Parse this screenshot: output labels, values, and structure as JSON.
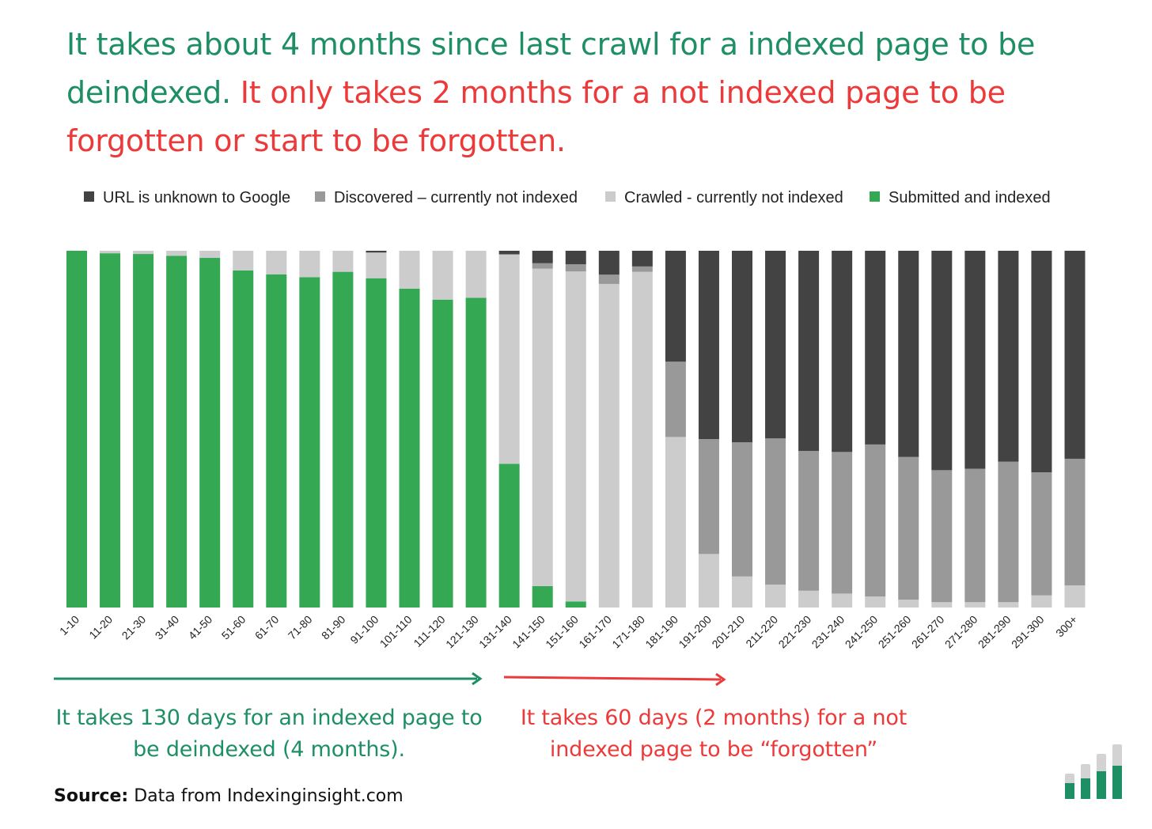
{
  "headline": {
    "green_part": "It takes about 4 months since last crawl for a indexed page to be deindexed.",
    "red_part": "It only takes 2 months for a not indexed page to be forgotten or start to be forgotten."
  },
  "captions": {
    "left": "It takes 130 days for an indexed page to be deindexed (4 months).",
    "right": "It takes 60 days (2 months) for a not indexed page to be “forgotten”"
  },
  "source": {
    "label": "Source:",
    "text": "Data from Indexinginsight.com"
  },
  "colors": {
    "green_text": "#1e8f64",
    "red_text": "#ec3a3a",
    "unknown": "#434343",
    "discovered": "#999999",
    "crawled": "#cccccc",
    "indexed": "#34a853"
  },
  "chart_data": {
    "type": "bar",
    "stacked": true,
    "normalized": true,
    "title": "",
    "xlabel": "",
    "ylabel": "",
    "ylim": [
      0,
      100
    ],
    "legend_position": "top",
    "categories": [
      "1-10",
      "11-20",
      "21-30",
      "31-40",
      "41-50",
      "51-60",
      "61-70",
      "71-80",
      "81-90",
      "91-100",
      "101-110",
      "111-120",
      "121-130",
      "131-140",
      "141-150",
      "151-160",
      "161-170",
      "171-180",
      "181-190",
      "191-200",
      "201-210",
      "211-220",
      "221-230",
      "231-240",
      "241-250",
      "251-260",
      "261-270",
      "271-280",
      "281-290",
      "291-300",
      "300+"
    ],
    "series": [
      {
        "name": "Submitted and indexed",
        "color": "#34a853",
        "values": [
          100,
          99.3,
          99.1,
          98.6,
          98,
          94.5,
          93.4,
          92.6,
          94.1,
          92.3,
          89.4,
          86.3,
          86.8,
          40.3,
          6,
          1.7,
          0,
          0,
          0,
          0,
          0,
          0,
          0,
          0,
          0,
          0,
          0,
          0,
          0,
          0,
          0
        ]
      },
      {
        "name": "Crawled - currently not indexed",
        "color": "#cccccc",
        "values": [
          0,
          0.7,
          0.9,
          1.4,
          2,
          5.5,
          6.6,
          7.4,
          5.9,
          7.2,
          10.6,
          13.7,
          13.2,
          58.7,
          89,
          92.5,
          90.7,
          94.1,
          47.8,
          15,
          8.7,
          6.4,
          4.7,
          3.9,
          3.1,
          2.2,
          1.5,
          1.5,
          1.5,
          3.4,
          6.2
        ]
      },
      {
        "name": "Discovered – currently not indexed",
        "color": "#999999",
        "values": [
          0,
          0,
          0,
          0,
          0,
          0,
          0,
          0,
          0,
          0,
          0,
          0,
          0,
          0,
          1.5,
          2,
          2.6,
          1.5,
          21.1,
          32.2,
          37.6,
          41,
          39.2,
          39.7,
          42.6,
          40,
          37,
          37.4,
          39.4,
          34.5,
          35.5
        ]
      },
      {
        "name": "URL is unknown to Google",
        "color": "#434343",
        "values": [
          0,
          0,
          0,
          0,
          0,
          0,
          0,
          0,
          0,
          0.5,
          0,
          0,
          0,
          1,
          3.5,
          3.8,
          6.7,
          4.4,
          31.1,
          52.8,
          53.7,
          52.6,
          56.1,
          56.4,
          54.3,
          57.8,
          61.5,
          61.1,
          59.1,
          62.1,
          58.3
        ]
      }
    ],
    "legend": [
      {
        "label": "URL is unknown to Google",
        "color": "#434343"
      },
      {
        "label": "Discovered – currently not indexed",
        "color": "#999999"
      },
      {
        "label": "Crawled - currently not indexed",
        "color": "#cccccc"
      },
      {
        "label": "Submitted and indexed",
        "color": "#34a853"
      }
    ]
  }
}
